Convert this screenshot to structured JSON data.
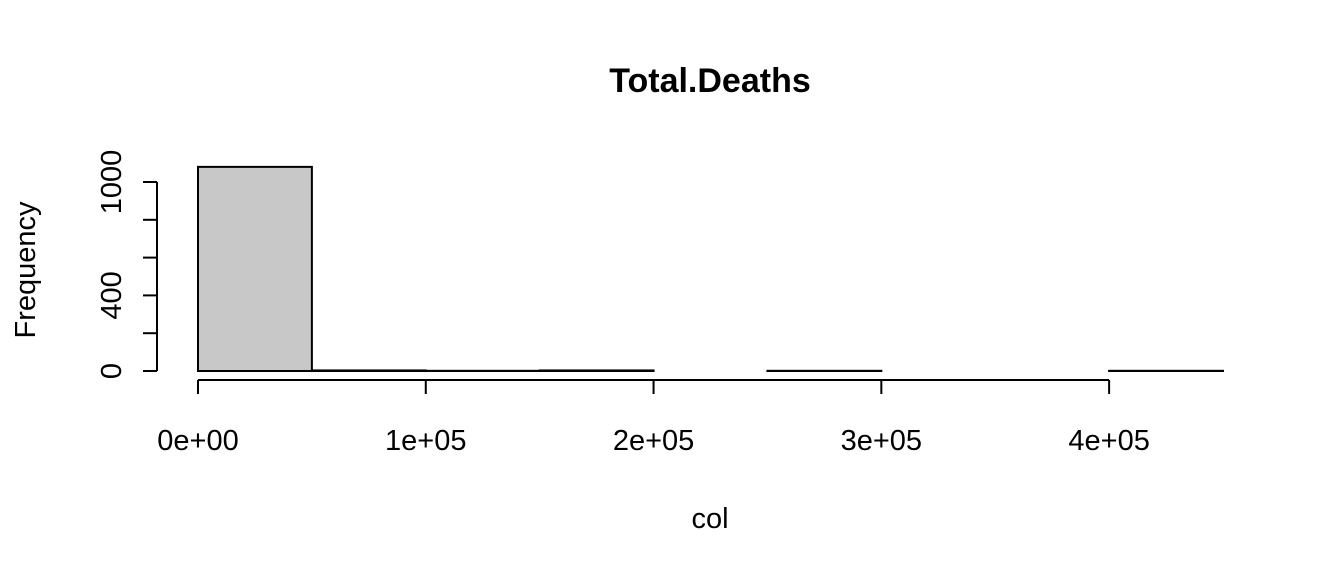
{
  "chart_data": {
    "type": "bar",
    "title": "Total.Deaths",
    "xlabel": "col",
    "ylabel": "Frequency",
    "bar_fill": "#c8c8c8",
    "bins": [
      {
        "start": 0,
        "end": 50000,
        "count": 1080
      },
      {
        "start": 50000,
        "end": 100000,
        "count": 3
      },
      {
        "start": 100000,
        "end": 150000,
        "count": 1
      },
      {
        "start": 150000,
        "end": 200000,
        "count": 3
      },
      {
        "start": 200000,
        "end": 250000,
        "count": 0
      },
      {
        "start": 250000,
        "end": 300000,
        "count": 1
      },
      {
        "start": 300000,
        "end": 350000,
        "count": 0
      },
      {
        "start": 350000,
        "end": 400000,
        "count": 0
      },
      {
        "start": 400000,
        "end": 450000,
        "count": 1
      }
    ],
    "xlim": [
      0,
      450000
    ],
    "ylim": [
      0,
      1100
    ],
    "x_ticks": [
      0,
      100000,
      200000,
      300000,
      400000
    ],
    "x_tick_labels": [
      "0e+00",
      "1e+05",
      "2e+05",
      "3e+05",
      "4e+05"
    ],
    "y_ticks": [
      0,
      200,
      400,
      600,
      800,
      1000
    ],
    "y_tick_labels": [
      "0",
      "",
      "400",
      "",
      "",
      "1000"
    ],
    "grid": false,
    "legend": "none"
  }
}
